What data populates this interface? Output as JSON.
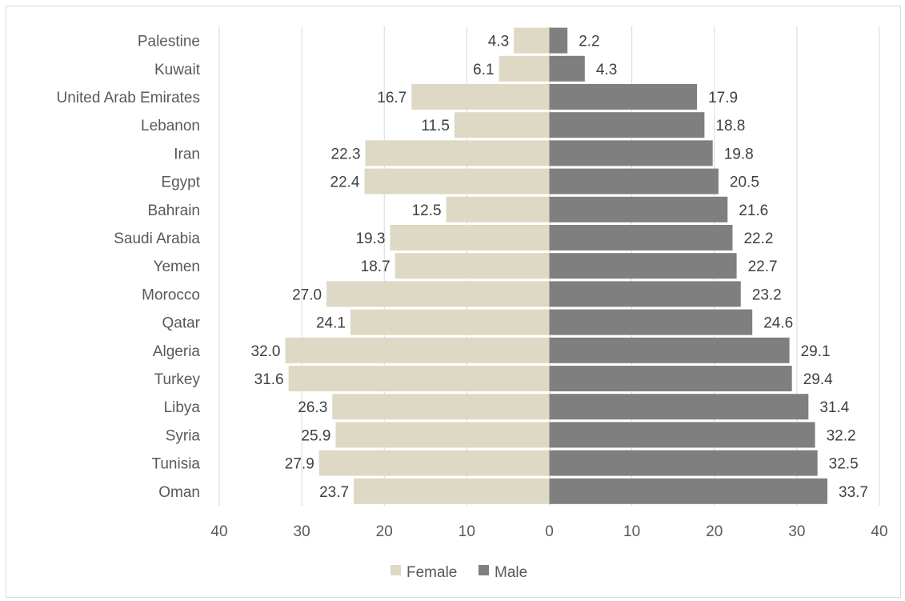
{
  "chart_data": {
    "type": "bar",
    "orientation": "horizontal",
    "layout": "population-pyramid",
    "categories": [
      "Palestine",
      "Kuwait",
      "United Arab Emirates",
      "Lebanon",
      "Iran",
      "Egypt",
      "Bahrain",
      "Saudi Arabia",
      "Yemen",
      "Morocco",
      "Qatar",
      "Algeria",
      "Turkey",
      "Libya",
      "Syria",
      "Tunisia",
      "Oman"
    ],
    "series": [
      {
        "name": "Female",
        "color": "#ddd9c4",
        "side": "left",
        "values": [
          4.3,
          6.1,
          16.7,
          11.5,
          22.3,
          22.4,
          12.5,
          19.3,
          18.7,
          27.0,
          24.1,
          32.0,
          31.6,
          26.3,
          25.9,
          27.9,
          23.7
        ]
      },
      {
        "name": "Male",
        "color": "#7f7f7f",
        "side": "right",
        "values": [
          2.2,
          4.3,
          17.9,
          18.8,
          19.8,
          20.5,
          21.6,
          22.2,
          22.7,
          23.2,
          24.6,
          29.1,
          29.4,
          31.4,
          32.2,
          32.5,
          33.7
        ]
      }
    ],
    "xlim": [
      -40,
      40
    ],
    "x_ticks": [
      -40,
      -30,
      -20,
      -10,
      0,
      10,
      20,
      30,
      40
    ],
    "x_tick_labels": [
      "40",
      "30",
      "20",
      "10",
      "0",
      "10",
      "20",
      "30",
      "40"
    ],
    "grid": true,
    "legend": "bottom",
    "title": "",
    "xlabel": "",
    "ylabel": ""
  }
}
